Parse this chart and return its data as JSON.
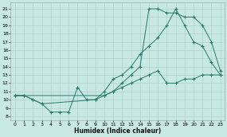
{
  "line1": {
    "x": [
      0,
      1,
      2,
      3,
      4,
      5,
      6,
      7,
      8,
      9,
      10,
      11,
      12,
      13,
      14,
      15,
      16,
      17,
      18,
      19,
      20,
      21,
      22,
      23
    ],
    "y": [
      10.5,
      10.5,
      10.0,
      9.5,
      8.5,
      8.5,
      8.5,
      11.5,
      10.0,
      10.0,
      11.0,
      12.5,
      13.0,
      14.0,
      15.5,
      16.5,
      17.5,
      19.0,
      21.0,
      19.0,
      17.0,
      16.5,
      14.5,
      13.0
    ]
  },
  "line2": {
    "x": [
      0,
      1,
      2,
      3,
      9,
      10,
      11,
      12,
      13,
      14,
      15,
      16,
      17,
      18,
      19,
      20,
      21,
      22,
      23
    ],
    "y": [
      10.5,
      10.5,
      10.0,
      9.5,
      10.0,
      10.5,
      11.0,
      12.0,
      13.0,
      14.0,
      21.0,
      21.0,
      20.5,
      20.5,
      20.0,
      20.0,
      19.0,
      17.0,
      13.5
    ]
  },
  "line3": {
    "x": [
      0,
      10,
      11,
      12,
      13,
      14,
      15,
      16,
      17,
      18,
      19,
      20,
      21,
      22,
      23
    ],
    "y": [
      10.5,
      10.5,
      11.0,
      11.5,
      12.0,
      12.5,
      13.0,
      13.5,
      12.0,
      12.0,
      12.5,
      12.5,
      13.0,
      13.0,
      13.0
    ]
  },
  "color": "#2a7a6a",
  "bg_color": "#c8e8e4",
  "grid_color": "#a8ccc8",
  "xlim": [
    -0.5,
    23.5
  ],
  "ylim": [
    7.5,
    21.8
  ],
  "xticks": [
    0,
    1,
    2,
    3,
    4,
    5,
    6,
    7,
    8,
    9,
    10,
    11,
    12,
    13,
    14,
    15,
    16,
    17,
    18,
    19,
    20,
    21,
    22,
    23
  ],
  "yticks": [
    8,
    9,
    10,
    11,
    12,
    13,
    14,
    15,
    16,
    17,
    18,
    19,
    20,
    21
  ],
  "xlabel": "Humidex (Indice chaleur)",
  "label_fontsize": 5.5,
  "tick_fontsize": 4.5
}
